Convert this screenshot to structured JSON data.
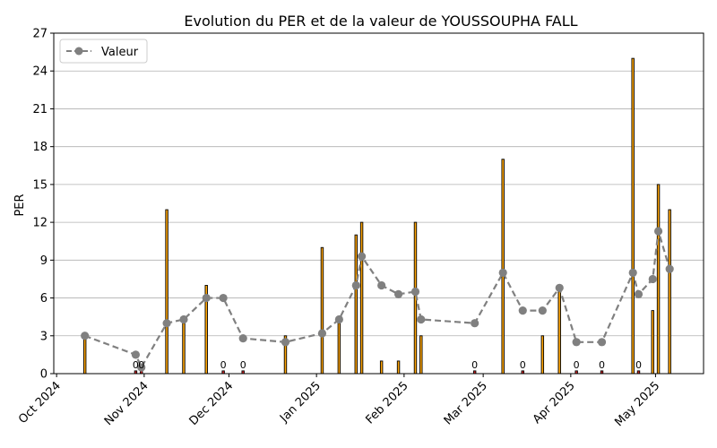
{
  "chart_data": {
    "type": "bar",
    "title": "Evolution du PER et de la valeur de YOUSSOUPHA FALL",
    "xlabel": "",
    "ylabel": "PER",
    "ylim": [
      0,
      27
    ],
    "yticks": [
      0,
      3,
      6,
      9,
      12,
      15,
      18,
      21,
      24,
      27
    ],
    "xlim": [
      "2024-09-30",
      "2025-05-18"
    ],
    "xticks": [
      {
        "date": "2024-10-01",
        "label": "Oct 2024"
      },
      {
        "date": "2024-11-01",
        "label": "Nov 2024"
      },
      {
        "date": "2024-12-01",
        "label": "Dec 2024"
      },
      {
        "date": "2025-01-01",
        "label": "Jan 2025"
      },
      {
        "date": "2025-02-01",
        "label": "Feb 2025"
      },
      {
        "date": "2025-03-01",
        "label": "Mar 2025"
      },
      {
        "date": "2025-04-01",
        "label": "Apr 2025"
      },
      {
        "date": "2025-05-01",
        "label": "May 2025"
      }
    ],
    "grid": "y",
    "legend_position": "top-left",
    "colors": {
      "bar": "#ffa500",
      "bar_zero": "#d62728",
      "bar_edge": "#000000",
      "line": "#808080",
      "grid": "#b0b0b0"
    },
    "per_bars": [
      {
        "date": "2024-10-11",
        "value": 3
      },
      {
        "date": "2024-10-29",
        "value": 0,
        "label": "0"
      },
      {
        "date": "2024-10-31",
        "value": 0,
        "label": "0"
      },
      {
        "date": "2024-11-09",
        "value": 13
      },
      {
        "date": "2024-11-15",
        "value": 4
      },
      {
        "date": "2024-11-23",
        "value": 7
      },
      {
        "date": "2024-11-29",
        "value": 0,
        "label": "0"
      },
      {
        "date": "2024-12-06",
        "value": 0,
        "label": "0"
      },
      {
        "date": "2024-12-21",
        "value": 3
      },
      {
        "date": "2025-01-03",
        "value": 10
      },
      {
        "date": "2025-01-09",
        "value": 4
      },
      {
        "date": "2025-01-15",
        "value": 11
      },
      {
        "date": "2025-01-17",
        "value": 12
      },
      {
        "date": "2025-01-24",
        "value": 1
      },
      {
        "date": "2025-01-30",
        "value": 1
      },
      {
        "date": "2025-02-05",
        "value": 12
      },
      {
        "date": "2025-02-07",
        "value": 3
      },
      {
        "date": "2025-02-26",
        "value": 0,
        "label": "0"
      },
      {
        "date": "2025-03-08",
        "value": 17
      },
      {
        "date": "2025-03-15",
        "value": 0,
        "label": "0"
      },
      {
        "date": "2025-03-22",
        "value": 3
      },
      {
        "date": "2025-03-28",
        "value": 7
      },
      {
        "date": "2025-04-03",
        "value": 0,
        "label": "0"
      },
      {
        "date": "2025-04-12",
        "value": 0,
        "label": "0"
      },
      {
        "date": "2025-04-23",
        "value": 25
      },
      {
        "date": "2025-04-25",
        "value": 0,
        "label": "0"
      },
      {
        "date": "2025-04-30",
        "value": 5
      },
      {
        "date": "2025-05-02",
        "value": 15
      },
      {
        "date": "2025-05-06",
        "value": 13
      }
    ],
    "series": [
      {
        "name": "Valeur",
        "type": "line",
        "points": [
          {
            "date": "2024-10-11",
            "value": 3.0
          },
          {
            "date": "2024-10-29",
            "value": 1.5
          },
          {
            "date": "2024-10-31",
            "value": 0.5
          },
          {
            "date": "2024-11-09",
            "value": 4.0
          },
          {
            "date": "2024-11-15",
            "value": 4.3
          },
          {
            "date": "2024-11-23",
            "value": 6.0
          },
          {
            "date": "2024-11-29",
            "value": 6.0
          },
          {
            "date": "2024-12-06",
            "value": 2.8
          },
          {
            "date": "2024-12-21",
            "value": 2.5
          },
          {
            "date": "2025-01-03",
            "value": 3.2
          },
          {
            "date": "2025-01-09",
            "value": 4.3
          },
          {
            "date": "2025-01-15",
            "value": 7.0
          },
          {
            "date": "2025-01-17",
            "value": 9.3
          },
          {
            "date": "2025-01-24",
            "value": 7.0
          },
          {
            "date": "2025-01-30",
            "value": 6.3
          },
          {
            "date": "2025-02-05",
            "value": 6.5
          },
          {
            "date": "2025-02-07",
            "value": 4.3
          },
          {
            "date": "2025-02-26",
            "value": 4.0
          },
          {
            "date": "2025-03-08",
            "value": 8.0
          },
          {
            "date": "2025-03-15",
            "value": 5.0
          },
          {
            "date": "2025-03-22",
            "value": 5.0
          },
          {
            "date": "2025-03-28",
            "value": 6.8
          },
          {
            "date": "2025-04-03",
            "value": 2.5
          },
          {
            "date": "2025-04-12",
            "value": 2.5
          },
          {
            "date": "2025-04-23",
            "value": 8.0
          },
          {
            "date": "2025-04-25",
            "value": 6.3
          },
          {
            "date": "2025-04-30",
            "value": 7.5
          },
          {
            "date": "2025-05-02",
            "value": 11.3
          },
          {
            "date": "2025-05-06",
            "value": 8.3
          }
        ]
      }
    ]
  }
}
